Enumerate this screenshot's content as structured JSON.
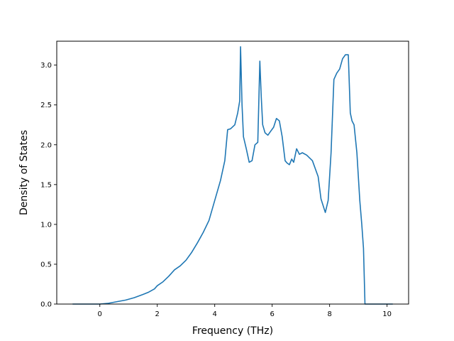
{
  "chart_data": {
    "type": "line",
    "title": "",
    "xlabel": "Frequency (THz)",
    "ylabel": "Density of States",
    "xlim": [
      -1.5,
      10.75
    ],
    "ylim": [
      0.0,
      3.3
    ],
    "x_ticks": [
      "0",
      "2",
      "4",
      "6",
      "8",
      "10"
    ],
    "x_tick_values": [
      0,
      2,
      4,
      6,
      8,
      10
    ],
    "y_ticks": [
      "0.0",
      "0.5",
      "1.0",
      "1.5",
      "2.0",
      "2.5",
      "3.0"
    ],
    "y_tick_values": [
      0.0,
      0.5,
      1.0,
      1.5,
      2.0,
      2.5,
      3.0
    ],
    "grid": false,
    "legend": "none",
    "colors": {
      "line": "#1f77b4",
      "axes": "#000000"
    },
    "series": [
      {
        "x": [
          -0.95,
          -0.5,
          0.0,
          0.3,
          0.6,
          0.9,
          1.2,
          1.5,
          1.7,
          1.9,
          2.0,
          2.2,
          2.4,
          2.6,
          2.8,
          3.0,
          3.2,
          3.4,
          3.6,
          3.8,
          4.0,
          4.2,
          4.35,
          4.45,
          4.55,
          4.7,
          4.8,
          4.87,
          4.9,
          4.95,
          5.0,
          5.1,
          5.2,
          5.3,
          5.4,
          5.5,
          5.57,
          5.62,
          5.67,
          5.75,
          5.85,
          5.95,
          6.05,
          6.15,
          6.25,
          6.35,
          6.45,
          6.52,
          6.6,
          6.68,
          6.75,
          6.85,
          6.95,
          7.05,
          7.2,
          7.4,
          7.6,
          7.7,
          7.85,
          7.95,
          8.05,
          8.15,
          8.25,
          8.35,
          8.45,
          8.55,
          8.65,
          8.72,
          8.78,
          8.85,
          8.95,
          9.05,
          9.12,
          9.18,
          9.23,
          9.3,
          9.4,
          9.6,
          9.8,
          10.0,
          10.2
        ],
        "y": [
          0.0,
          0.0,
          0.0,
          0.01,
          0.03,
          0.05,
          0.08,
          0.12,
          0.15,
          0.19,
          0.23,
          0.28,
          0.35,
          0.43,
          0.48,
          0.55,
          0.65,
          0.77,
          0.9,
          1.05,
          1.3,
          1.55,
          1.8,
          2.19,
          2.2,
          2.25,
          2.4,
          2.55,
          3.23,
          2.5,
          2.1,
          1.95,
          1.78,
          1.8,
          2.0,
          2.03,
          3.05,
          2.6,
          2.25,
          2.15,
          2.12,
          2.17,
          2.22,
          2.33,
          2.3,
          2.1,
          1.8,
          1.77,
          1.75,
          1.82,
          1.78,
          1.95,
          1.88,
          1.9,
          1.87,
          1.8,
          1.6,
          1.32,
          1.15,
          1.3,
          1.9,
          2.82,
          2.9,
          2.95,
          3.08,
          3.13,
          3.13,
          2.4,
          2.3,
          2.25,
          1.9,
          1.3,
          1.0,
          0.7,
          0.0,
          0.0,
          0.0,
          0.0,
          0.0,
          0.0,
          0.0
        ]
      }
    ]
  }
}
